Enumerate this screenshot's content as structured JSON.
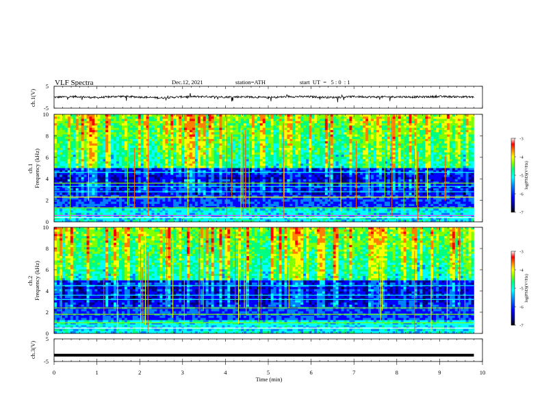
{
  "header": {
    "title": "VLF  Spectra",
    "date": "Dec.12, 2021",
    "station": "station=ATH",
    "start": "start  UT  =   5 : 0  : 1"
  },
  "panels": {
    "ch1_wave_label": "ch.1(V)",
    "ch1_spec_label_ch": "ch.1",
    "ch1_spec_label_freq": "Frequency  (kHz)",
    "ch2_spec_label_ch": "ch.2",
    "ch2_spec_label_freq": "Frequency  (kHz)",
    "ch3_wave_label": "ch.3(V)",
    "colorbar_label": "log(PSD)(V²/Hz)",
    "xlabel": "Time  (min)"
  },
  "colors": {
    "trace": "#000000",
    "colormap": [
      "#000000",
      "#000080",
      "#0000ff",
      "#0080ff",
      "#00ffff",
      "#00ff80",
      "#80ff00",
      "#ffff00",
      "#ff8000",
      "#ff0000",
      "#ffffff"
    ]
  },
  "chart_data": [
    {
      "type": "line",
      "name": "ch.1 waveform",
      "xlabel": "Time  (min)",
      "ylabel": "ch.1(V)",
      "xlim": [
        0,
        10
      ],
      "ylim": [
        -5,
        5
      ],
      "yticks": [
        -5,
        5
      ],
      "x": [
        0,
        0.5,
        1,
        1.5,
        2,
        2.5,
        3,
        3.5,
        4,
        4.5,
        5,
        5.5,
        6,
        6.5,
        7,
        7.5,
        8,
        8.5,
        9,
        9.5,
        9.8
      ],
      "y": [
        0,
        0.3,
        -0.2,
        0.4,
        0.1,
        -0.3,
        0.2,
        0.3,
        0.1,
        0.2,
        -0.2,
        0.3,
        0.2,
        -0.1,
        0.3,
        0.1,
        0.2,
        0.1,
        0.3,
        0.2,
        0.1
      ],
      "data_end_min": 9.8
    },
    {
      "type": "heatmap",
      "name": "ch.1 spectrogram",
      "ylabel": "Frequency  (kHz)",
      "xlim": [
        0,
        10
      ],
      "ylim": [
        0,
        10
      ],
      "yticks": [
        0,
        2,
        4,
        6,
        8,
        10
      ],
      "colorbar": {
        "min": -7,
        "max": -3,
        "ticks": [
          -3,
          -4,
          -5,
          -6,
          -7
        ],
        "label": "log(PSD)(V²/Hz)"
      },
      "data_end_min": 9.8
    },
    {
      "type": "heatmap",
      "name": "ch.2 spectrogram",
      "ylabel": "Frequency  (kHz)",
      "xlim": [
        0,
        10
      ],
      "ylim": [
        0,
        10
      ],
      "yticks": [
        0,
        2,
        4,
        6,
        8,
        10
      ],
      "colorbar": {
        "min": -7,
        "max": -3,
        "ticks": [
          -3,
          -4,
          -5,
          -6,
          -7
        ],
        "label": "log(PSD)(V²/Hz)"
      },
      "data_end_min": 9.8
    },
    {
      "type": "line",
      "name": "ch.3 waveform",
      "xlabel": "Time  (min)",
      "ylabel": "ch.3(V)",
      "xlim": [
        0,
        10
      ],
      "ylim": [
        -5,
        5
      ],
      "yticks": [
        -5,
        5
      ],
      "x": [
        0,
        9.8
      ],
      "y": [
        -2.2,
        -2.2
      ],
      "data_end_min": 9.8
    }
  ],
  "xticks": [
    0,
    1,
    2,
    3,
    4,
    5,
    6,
    7,
    8,
    9,
    10
  ]
}
